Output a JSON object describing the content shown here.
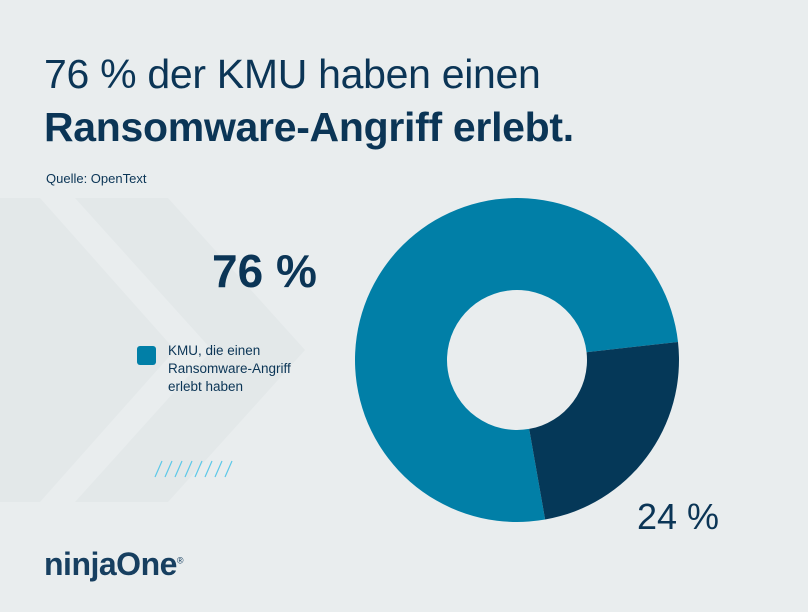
{
  "header": {
    "title_line1": "76 % der KMU haben einen",
    "title_line2": "Ransomware-Angriff erlebt.",
    "source": "Quelle: OpenText"
  },
  "brand": {
    "logo_text": "ninjaOne",
    "registered_mark": "®"
  },
  "chart_data": {
    "type": "pie",
    "donut": true,
    "slices": [
      {
        "label": "KMU, die einen Ransomware-Angriff erlebt haben",
        "value": 76,
        "value_label": "76 %",
        "color": "#017fa7"
      },
      {
        "value": 24,
        "value_label": "24 %",
        "color": "#053858"
      }
    ],
    "legend": {
      "entries": [
        "KMU, die einen Ransomware-Angriff erlebt haben"
      ],
      "placement": "left"
    }
  },
  "colors": {
    "background": "#e9edee",
    "text": "#0b3556",
    "accent_hatch": "#5cc8e8"
  }
}
